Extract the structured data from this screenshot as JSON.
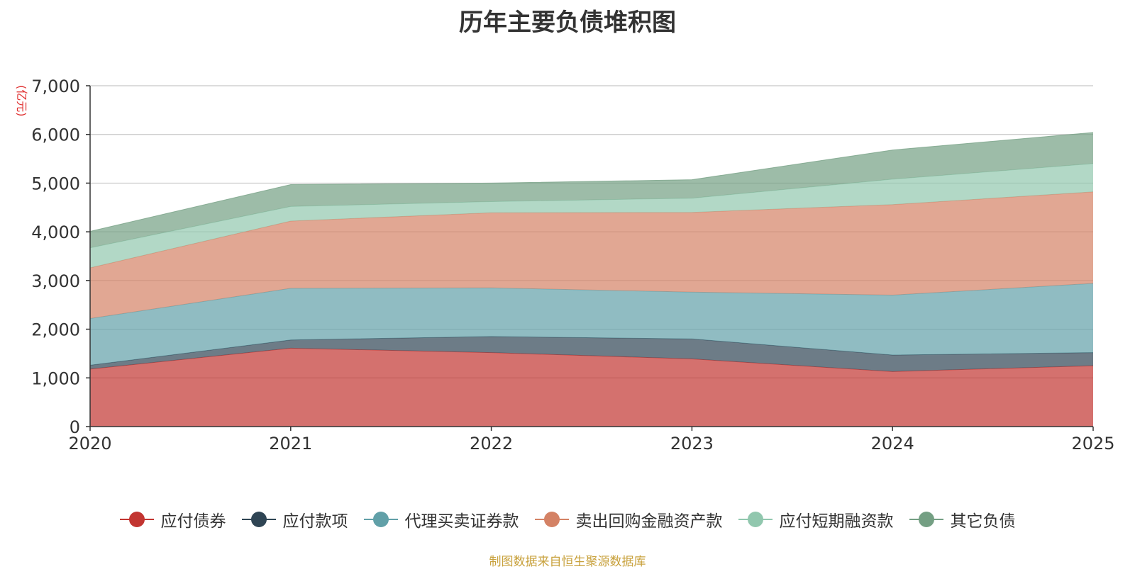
{
  "chart_data": {
    "type": "area",
    "stacked": true,
    "title": "历年主要负债堆积图",
    "unit": "(亿元)",
    "categories": [
      "2020",
      "2021",
      "2022",
      "2023",
      "2024",
      "2025"
    ],
    "ylim": [
      0,
      7000
    ],
    "yticks": [
      0,
      1000,
      2000,
      3000,
      4000,
      5000,
      6000,
      7000
    ],
    "ytick_labels": [
      "0",
      "1,000",
      "2,000",
      "3,000",
      "4,000",
      "5,000",
      "6,000",
      "7,000"
    ],
    "grid": true,
    "legend_position": "bottom",
    "series": [
      {
        "name": "应付债券",
        "color": "#c23531",
        "values": [
          1180,
          1610,
          1520,
          1390,
          1130,
          1250
        ]
      },
      {
        "name": "应付款项",
        "color": "#2f4554",
        "values": [
          80,
          170,
          330,
          410,
          340,
          270
        ]
      },
      {
        "name": "代理买卖证券款",
        "color": "#61a0a8",
        "values": [
          960,
          1060,
          1000,
          960,
          1230,
          1420
        ]
      },
      {
        "name": "卖出回购金融资产款",
        "color": "#d48265",
        "values": [
          1040,
          1380,
          1540,
          1640,
          1860,
          1880
        ]
      },
      {
        "name": "应付短期融资款",
        "color": "#91c7ae",
        "values": [
          410,
          300,
          230,
          290,
          520,
          580
        ]
      },
      {
        "name": "其它负债",
        "color": "#749f83",
        "values": [
          340,
          450,
          380,
          380,
          600,
          640
        ]
      }
    ]
  },
  "source_note": "制图数据来自恒生聚源数据库"
}
